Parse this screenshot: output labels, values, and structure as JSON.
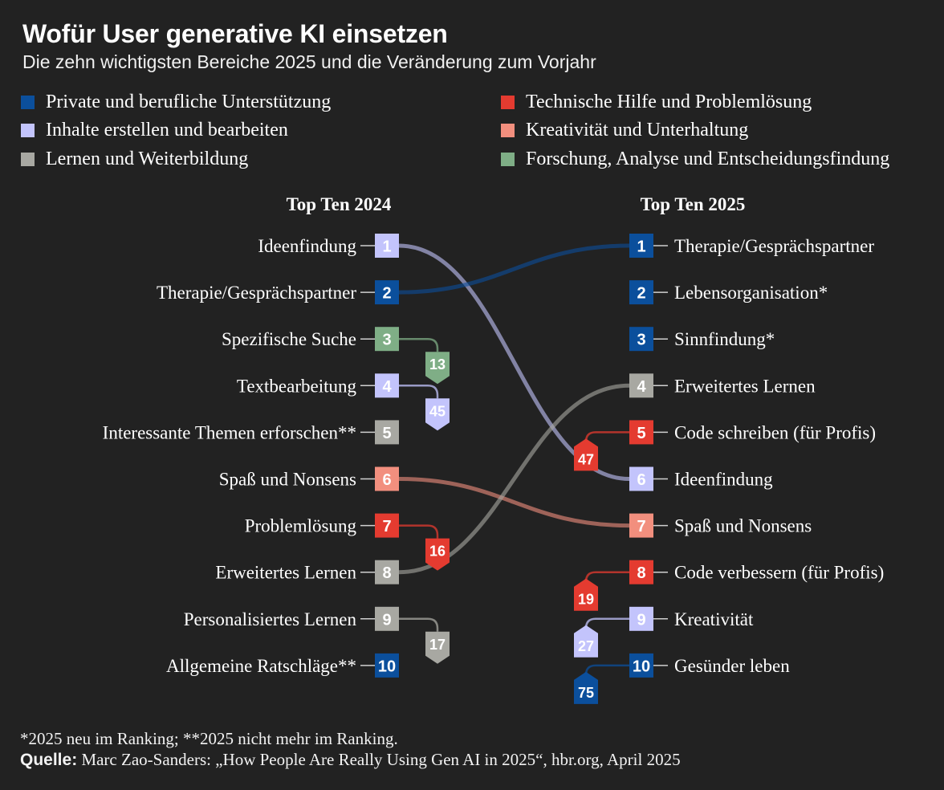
{
  "header": {
    "title": "Wofür User generative KI einsetzen",
    "subtitle": "Die zehn wichtigsten Bereiche 2025 und die Veränderung zum Vorjahr"
  },
  "legend": [
    {
      "label": "Private und berufliche Unterstützung",
      "color": "#0b4f9c"
    },
    {
      "label": "Inhalte erstellen und bearbeiten",
      "color": "#c3c4fc"
    },
    {
      "label": "Lernen und Weiterbildung",
      "color": "#a8a8a2"
    },
    {
      "label": "Technische Hilfe und Problemlösung",
      "color": "#e43b30"
    },
    {
      "label": "Kreativität und Unterhaltung",
      "color": "#f28f7e"
    },
    {
      "label": "Forschung, Analyse und Entscheidungsfindung",
      "color": "#7fae86"
    }
  ],
  "chart_data": {
    "type": "slope",
    "column_headers": [
      "Top Ten 2024",
      "Top Ten 2025"
    ],
    "left_items": [
      {
        "rank": 1,
        "label": "Ideenfindung",
        "category": 1,
        "rank_2025": 6
      },
      {
        "rank": 2,
        "label": "Therapie/Gesprächspartner",
        "category": 0,
        "rank_2025": 1
      },
      {
        "rank": 3,
        "label": "Spezifische Suche",
        "category": 5,
        "rank_2025": 13
      },
      {
        "rank": 4,
        "label": "Textbearbeitung",
        "category": 1,
        "rank_2025": 45
      },
      {
        "rank": 5,
        "label": "Interessante Themen erforschen**",
        "category": 2,
        "rank_2025": null
      },
      {
        "rank": 6,
        "label": "Spaß und Nonsens",
        "category": 4,
        "rank_2025": 7
      },
      {
        "rank": 7,
        "label": "Problemlösung",
        "category": 3,
        "rank_2025": 16
      },
      {
        "rank": 8,
        "label": "Erweitertes Lernen",
        "category": 2,
        "rank_2025": 4
      },
      {
        "rank": 9,
        "label": "Personalisiertes Lernen",
        "category": 2,
        "rank_2025": 17
      },
      {
        "rank": 10,
        "label": "Allgemeine Ratschläge**",
        "category": 0,
        "rank_2025": null
      }
    ],
    "right_items": [
      {
        "rank": 1,
        "label": "Therapie/Gesprächspartner",
        "category": 0,
        "rank_2024": 2
      },
      {
        "rank": 2,
        "label": "Lebensorganisation*",
        "category": 0,
        "rank_2024": null
      },
      {
        "rank": 3,
        "label": "Sinnfindung*",
        "category": 0,
        "rank_2024": null
      },
      {
        "rank": 4,
        "label": "Erweitertes Lernen",
        "category": 2,
        "rank_2024": 8
      },
      {
        "rank": 5,
        "label": "Code schreiben (für Profis)",
        "category": 3,
        "rank_2024": 47
      },
      {
        "rank": 6,
        "label": "Ideenfindung",
        "category": 1,
        "rank_2024": 1
      },
      {
        "rank": 7,
        "label": "Spaß und Nonsens",
        "category": 4,
        "rank_2024": 6
      },
      {
        "rank": 8,
        "label": "Code verbessern (für Profis)",
        "category": 3,
        "rank_2024": 19
      },
      {
        "rank": 9,
        "label": "Kreativität",
        "category": 1,
        "rank_2024": 27
      },
      {
        "rank": 10,
        "label": "Gesünder leben",
        "category": 0,
        "rank_2024": 75
      }
    ]
  },
  "footer": {
    "note": "*2025 neu im Ranking; **2025 nicht mehr im Ranking.",
    "source_label": "Quelle:",
    "source_text": " Marc Zao-Sanders: „How People Are Really Using Gen AI in 2025“, hbr.org, April 2025"
  }
}
